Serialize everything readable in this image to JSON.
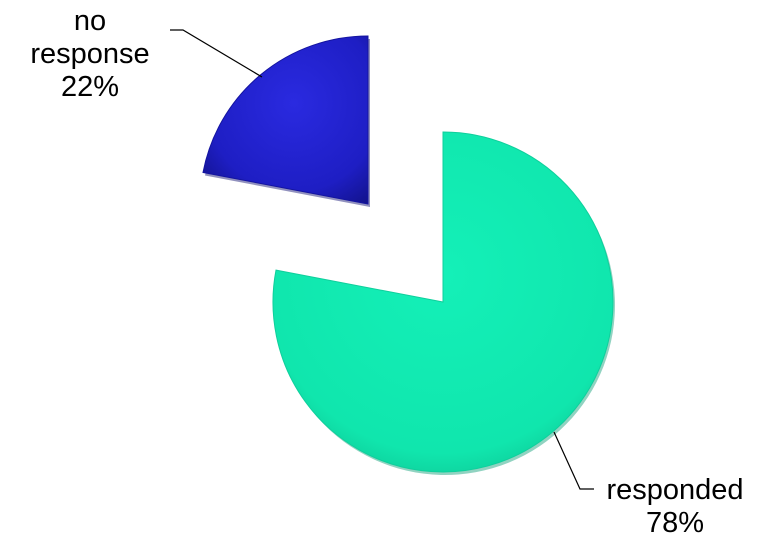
{
  "chart_data": {
    "type": "pie",
    "title": "",
    "slices": [
      {
        "label": "no response",
        "percent_label": "22%",
        "value": 22,
        "color": "#2020c8",
        "exploded": true
      },
      {
        "label": "responded",
        "percent_label": "78%",
        "value": 78,
        "color": "#12e8b0",
        "exploded": true
      }
    ],
    "legend": "none",
    "data_labels": "outside with leader lines",
    "style": "3D bevel"
  }
}
